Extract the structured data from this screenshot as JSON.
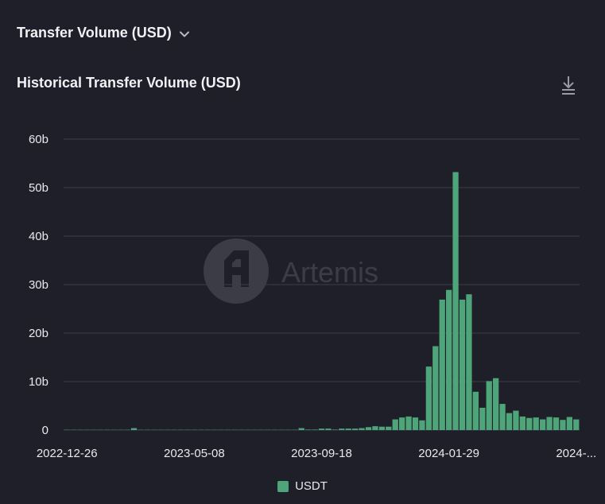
{
  "header": {
    "title": "Transfer Volume (USD)",
    "dropdown_icon": "chevron-down-icon"
  },
  "toolbar": {
    "download_icon": "download-icon"
  },
  "watermark": {
    "text": "Artemis"
  },
  "colors": {
    "background": "#1f1f2a",
    "bar": "#4fa57a",
    "grid": "#3d3d4a",
    "axis_text": "#e8e8ee"
  },
  "chart_data": {
    "type": "bar",
    "title": "Historical Transfer Volume (USD)",
    "xlabel": "",
    "ylabel": "",
    "ylim": [
      0,
      60
    ],
    "yticks": [
      "0",
      "10b",
      "20b",
      "30b",
      "40b",
      "50b",
      "60b"
    ],
    "y_unit": "billions USD",
    "x_tick_labels": [
      {
        "label": "2022-12-26",
        "index": 0
      },
      {
        "label": "2023-05-08",
        "index": 19
      },
      {
        "label": "2023-09-18",
        "index": 38
      },
      {
        "label": "2024-01-29",
        "index": 57
      },
      {
        "label": "2024-...",
        "index": 76
      }
    ],
    "grid": true,
    "legend_position": "bottom",
    "series": [
      {
        "name": "USDT",
        "values": [
          0.05,
          0.05,
          0.05,
          0.05,
          0.05,
          0.05,
          0.05,
          0.05,
          0.05,
          0.05,
          0.4,
          0.05,
          0.05,
          0.05,
          0.05,
          0.05,
          0.05,
          0.05,
          0.05,
          0.05,
          0.05,
          0.05,
          0.05,
          0.05,
          0.05,
          0.05,
          0.05,
          0.05,
          0.05,
          0.05,
          0.05,
          0.05,
          0.05,
          0.05,
          0.05,
          0.4,
          0.1,
          0.1,
          0.3,
          0.3,
          0.1,
          0.3,
          0.3,
          0.3,
          0.4,
          0.6,
          0.8,
          0.7,
          0.7,
          2.2,
          2.6,
          2.8,
          2.6,
          2.0,
          13.1,
          17.3,
          26.9,
          28.9,
          53.2,
          26.9,
          28.0,
          7.9,
          4.6,
          10.1,
          10.7,
          5.4,
          3.5,
          4.0,
          2.8,
          2.5,
          2.6,
          2.2,
          2.7,
          2.6,
          2.1,
          2.7,
          2.2
        ]
      }
    ]
  }
}
